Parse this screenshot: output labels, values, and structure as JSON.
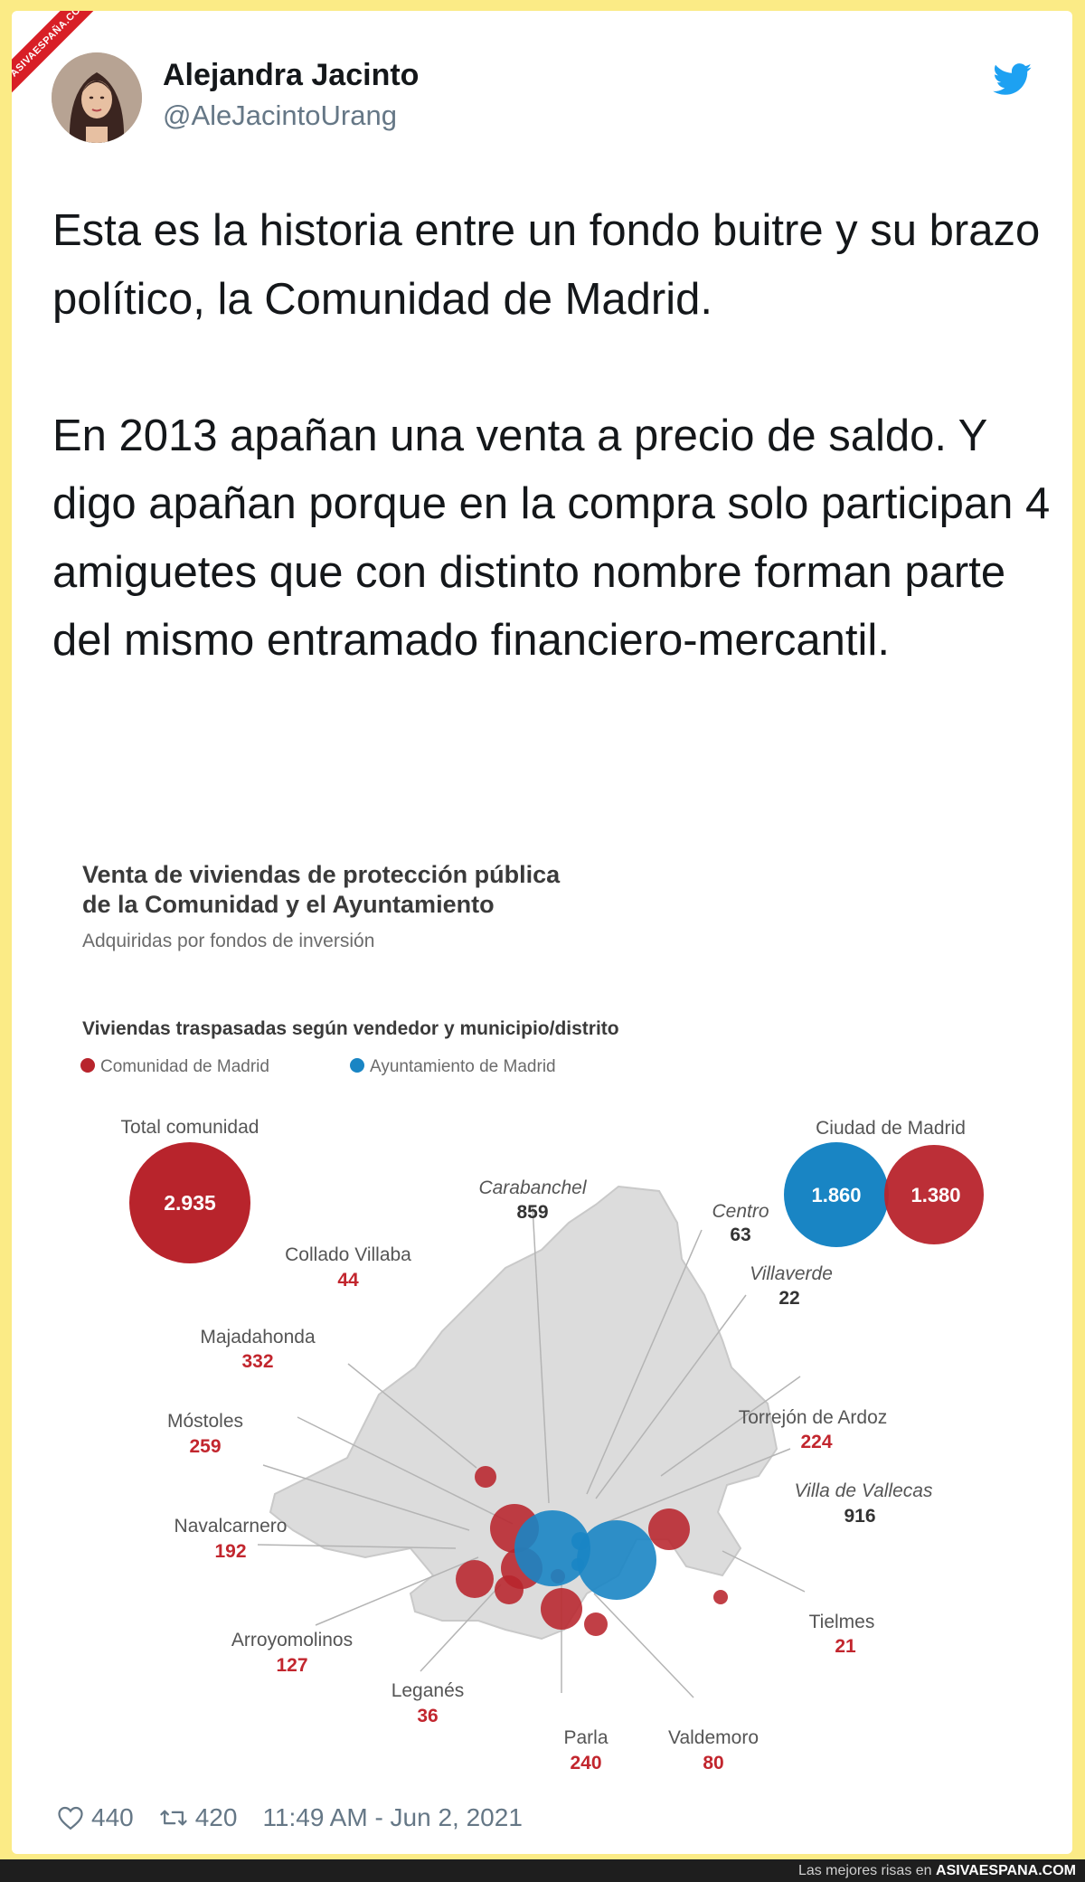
{
  "watermark": {
    "ribbon": "ASIVAESPAÑA.COM",
    "footer_prefix": "Las mejores risas en",
    "footer_site": "ASIVAESPANA.COM"
  },
  "tweet": {
    "author_name": "Alejandra Jacinto",
    "author_handle": "@AleJacintoUrang",
    "paragraphs": [
      "Esta es la historia entre un fondo buitre y su brazo político, la Comunidad de Madrid.",
      "En 2013 apañan una venta a precio de saldo. Y digo apañan porque en la compra solo participan 4 amiguetes que con distinto nombre forman parte del mismo entramado financiero-mercantil."
    ],
    "likes": "440",
    "retweets": "420",
    "timestamp": "11:49 AM - Jun 2, 2021",
    "icons": {
      "brand": "twitter-bird-icon",
      "like": "heart-icon",
      "retweet": "retweet-icon"
    },
    "colors": {
      "twitter_blue": "#1da1f2",
      "comunidad_red": "#b8242c",
      "ayuntamiento_blue": "#1985c4"
    }
  },
  "infographic": {
    "title_line1": "Venta de viviendas de protección pública",
    "title_line2": "de la Comunidad y el Ayuntamiento",
    "subtitle": "Adquiridas por fondos de inversión",
    "section_title": "Viviendas traspasadas según vendedor y municipio/distrito",
    "legend": [
      {
        "label": "Comunidad de Madrid",
        "color": "#b8242c"
      },
      {
        "label": "Ayuntamiento de Madrid",
        "color": "#1985c4"
      }
    ],
    "totals": {
      "comunidad_label": "Total comunidad",
      "comunidad_value": "2.935",
      "ciudad_label": "Ciudad de Madrid",
      "ciudad_ayuntamiento_value": "1.860",
      "ciudad_comunidad_value": "1.380"
    },
    "places": [
      {
        "name": "Carabanchel",
        "value": "859",
        "seller": "ayuntamiento"
      },
      {
        "name": "Centro",
        "value": "63",
        "seller": "ayuntamiento"
      },
      {
        "name": "Collado Villaba",
        "value": "44",
        "seller": "comunidad"
      },
      {
        "name": "Villaverde",
        "value": "22",
        "seller": "ayuntamiento"
      },
      {
        "name": "Majadahonda",
        "value": "332",
        "seller": "comunidad"
      },
      {
        "name": "Torrejón de Ardoz",
        "value": "224",
        "seller": "comunidad"
      },
      {
        "name": "Móstoles",
        "value": "259",
        "seller": "comunidad"
      },
      {
        "name": "Villa de Vallecas",
        "value": "916",
        "seller": "ayuntamiento"
      },
      {
        "name": "Navalcarnero",
        "value": "192",
        "seller": "comunidad"
      },
      {
        "name": "Tielmes",
        "value": "21",
        "seller": "comunidad"
      },
      {
        "name": "Arroyomolinos",
        "value": "127",
        "seller": "comunidad"
      },
      {
        "name": "Leganés",
        "value": "36",
        "seller": "comunidad"
      },
      {
        "name": "Parla",
        "value": "240",
        "seller": "comunidad"
      },
      {
        "name": "Valdemoro",
        "value": "80",
        "seller": "comunidad"
      }
    ]
  }
}
